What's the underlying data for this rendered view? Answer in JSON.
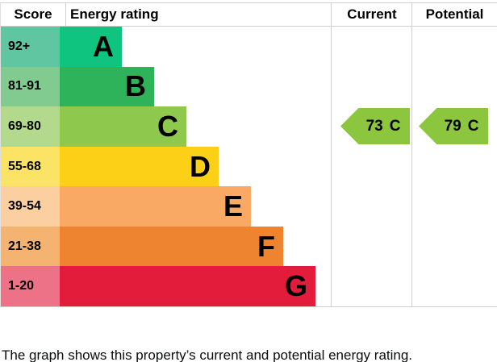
{
  "chart_data": {
    "type": "bar",
    "title": "Energy rating",
    "columns": [
      "Score",
      "Energy rating",
      "Current",
      "Potential"
    ],
    "bands": [
      {
        "letter": "A",
        "score": "92+",
        "bar_color": "#0ec47e",
        "score_color": "#5fc6a1"
      },
      {
        "letter": "B",
        "score": "81-91",
        "bar_color": "#2fb35a",
        "score_color": "#81cb90"
      },
      {
        "letter": "C",
        "score": "69-80",
        "bar_color": "#8ec84c",
        "score_color": "#b3da8c"
      },
      {
        "letter": "D",
        "score": "55-68",
        "bar_color": "#fcd016",
        "score_color": "#fbe366"
      },
      {
        "letter": "E",
        "score": "39-54",
        "bar_color": "#f9a963",
        "score_color": "#fccfa0"
      },
      {
        "letter": "F",
        "score": "21-38",
        "bar_color": "#ee8430",
        "score_color": "#f4b371"
      },
      {
        "letter": "G",
        "score": "1-20",
        "bar_color": "#e41c3c",
        "score_color": "#ee7287"
      }
    ],
    "current": {
      "value": "73",
      "band": "C"
    },
    "potential": {
      "value": "79",
      "band": "C"
    },
    "arrow_color": "#8bc63e",
    "gridline_color": "#cfcfcf"
  },
  "header": {
    "score": "Score",
    "energy_rating": "Energy rating",
    "current": "Current",
    "potential": "Potential"
  },
  "footer": {
    "text": "The graph shows this property’s current and potential energy rating."
  }
}
